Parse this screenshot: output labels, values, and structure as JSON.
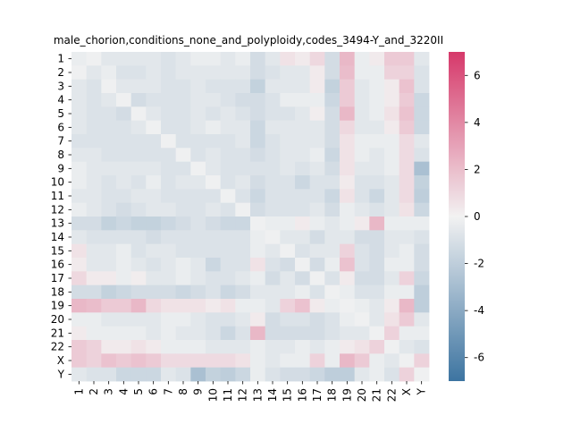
{
  "chart_data": {
    "type": "heatmap",
    "title": "male_chorion,conditions_none_and_polyploidy,codes_3494-Y_and_3220II",
    "xlabel": "",
    "ylabel": "",
    "row_labels": [
      "1",
      "2",
      "3",
      "4",
      "5",
      "6",
      "7",
      "8",
      "9",
      "10",
      "11",
      "12",
      "13",
      "14",
      "15",
      "16",
      "17",
      "18",
      "19",
      "20",
      "21",
      "22",
      "X",
      "Y"
    ],
    "col_labels": [
      "1",
      "2",
      "3",
      "4",
      "5",
      "6",
      "7",
      "8",
      "9",
      "10",
      "11",
      "12",
      "13",
      "14",
      "15",
      "16",
      "17",
      "18",
      "19",
      "20",
      "21",
      "22",
      "X",
      "Y"
    ],
    "colorbar": {
      "vmin": -7,
      "vmax": 7,
      "ticks": [
        "-6",
        "-4",
        "-2",
        "0",
        "2",
        "4",
        "6"
      ]
    },
    "colors": {
      "low": "#3d74a1",
      "mid": "#f2f2f2",
      "high": "#d6396a"
    },
    "values": [
      [
        -0.3,
        -0.1,
        -0.6,
        -0.6,
        -0.6,
        -0.6,
        -0.9,
        -0.6,
        -0.3,
        -0.3,
        -0.6,
        -0.3,
        -1.2,
        -0.6,
        0.6,
        0.3,
        1.0,
        -1.2,
        2.2,
        -0.3,
        0.3,
        1.5,
        1.5,
        -0.6
      ],
      [
        -0.1,
        -0.6,
        -0.3,
        -0.9,
        -0.9,
        -0.6,
        -0.9,
        -0.6,
        -0.6,
        -0.6,
        -0.6,
        -0.6,
        -1.2,
        -0.9,
        -0.6,
        -0.6,
        0.3,
        -1.2,
        2.0,
        -0.3,
        -0.3,
        1.2,
        1.2,
        -0.9
      ],
      [
        -0.6,
        -0.9,
        -0.1,
        -0.6,
        -0.6,
        -0.6,
        -0.9,
        -0.9,
        -0.6,
        -0.9,
        -0.9,
        -0.9,
        -1.8,
        -0.6,
        -0.6,
        -0.6,
        0.3,
        -1.8,
        1.5,
        -0.6,
        -0.3,
        0.3,
        1.8,
        -0.9
      ],
      [
        -0.6,
        -0.9,
        -0.6,
        -0.1,
        -1.2,
        -0.9,
        -0.9,
        -0.9,
        -0.6,
        -0.6,
        -0.9,
        -1.2,
        -1.2,
        -0.9,
        -0.3,
        -0.3,
        -0.3,
        -1.5,
        1.5,
        -0.6,
        -0.3,
        0.3,
        1.5,
        -1.5
      ],
      [
        -0.6,
        -0.9,
        -0.9,
        -1.2,
        -0.1,
        -0.6,
        -0.9,
        -0.9,
        -0.6,
        -0.9,
        -0.6,
        -0.9,
        -1.2,
        -0.9,
        -0.9,
        -0.6,
        0.2,
        -1.2,
        2.2,
        -0.6,
        -0.3,
        0.6,
        1.8,
        -1.5
      ],
      [
        -0.6,
        -0.9,
        -0.9,
        -0.9,
        -0.6,
        -0.1,
        -0.9,
        -0.9,
        -0.6,
        -0.3,
        -0.6,
        -0.6,
        -1.5,
        -0.6,
        -0.6,
        -0.6,
        -0.6,
        -1.2,
        1.0,
        -0.6,
        -0.6,
        0.3,
        1.5,
        -1.5
      ],
      [
        -0.9,
        -0.9,
        -0.9,
        -0.9,
        -0.9,
        -0.9,
        -0.1,
        -0.9,
        -0.9,
        -0.9,
        -0.9,
        -0.6,
        -1.5,
        -0.9,
        -0.6,
        -0.6,
        -0.6,
        -1.2,
        0.6,
        -0.3,
        -0.3,
        -0.3,
        0.9,
        -0.6
      ],
      [
        -0.6,
        -0.6,
        -0.9,
        -0.9,
        -0.9,
        -0.9,
        -0.9,
        -0.1,
        -0.9,
        -0.6,
        -0.9,
        -0.9,
        -1.2,
        -0.9,
        -0.6,
        -0.6,
        -0.3,
        -1.5,
        0.6,
        -0.3,
        -0.6,
        -0.3,
        0.9,
        -0.9
      ],
      [
        -0.3,
        -0.6,
        -0.6,
        -0.6,
        -0.6,
        -0.6,
        -0.9,
        -0.9,
        -0.1,
        -0.6,
        -0.9,
        -0.9,
        -0.9,
        -0.9,
        -0.6,
        -0.9,
        -0.6,
        -1.2,
        0.6,
        -0.6,
        -0.6,
        -0.3,
        0.9,
        -2.8
      ],
      [
        -0.3,
        -0.6,
        -0.9,
        -0.6,
        -0.9,
        -0.3,
        -0.9,
        -0.6,
        -0.6,
        -0.1,
        -0.9,
        -0.6,
        -1.2,
        -0.9,
        -0.9,
        -1.5,
        -0.9,
        -0.9,
        0.3,
        -0.9,
        -0.9,
        -0.6,
        0.9,
        -1.8
      ],
      [
        -0.6,
        -0.6,
        -0.9,
        -0.9,
        -0.6,
        -0.6,
        -0.9,
        -0.9,
        -0.9,
        -0.9,
        -0.1,
        -0.9,
        -1.5,
        -0.9,
        -0.9,
        -0.9,
        -0.9,
        -1.5,
        0.6,
        -0.9,
        -1.5,
        -0.6,
        0.9,
        -2.0
      ],
      [
        -0.3,
        -0.6,
        -0.9,
        -1.2,
        -0.9,
        -0.6,
        -0.6,
        -0.9,
        -0.9,
        -0.6,
        -0.9,
        -0.1,
        -1.2,
        -0.9,
        -0.9,
        -0.9,
        -0.6,
        -1.2,
        -0.3,
        -0.6,
        -0.9,
        -0.6,
        0.6,
        -1.5
      ],
      [
        -1.2,
        -1.2,
        -1.8,
        -1.5,
        -1.8,
        -1.8,
        -1.5,
        -1.2,
        -0.9,
        -1.2,
        -1.5,
        -1.5,
        -0.1,
        -0.3,
        -0.3,
        0.3,
        -0.3,
        -0.6,
        -0.3,
        0.3,
        2.2,
        -0.3,
        -0.3,
        -0.3
      ],
      [
        -0.6,
        -0.9,
        -0.9,
        -0.9,
        -0.9,
        -1.2,
        -0.9,
        -0.9,
        -0.9,
        -0.9,
        -0.9,
        -0.9,
        -0.3,
        -0.1,
        -0.6,
        -0.6,
        -1.2,
        -0.6,
        -0.6,
        -1.2,
        -1.2,
        -0.6,
        -0.6,
        -0.9
      ],
      [
        0.6,
        -0.6,
        -0.6,
        -0.3,
        -0.9,
        -0.6,
        -0.6,
        -0.9,
        -0.9,
        -0.9,
        -0.9,
        -0.9,
        -0.3,
        -0.6,
        -0.1,
        -0.9,
        -0.6,
        -0.6,
        1.2,
        -0.9,
        -1.2,
        -0.6,
        -0.3,
        -1.2
      ],
      [
        0.3,
        -0.6,
        -0.6,
        -0.3,
        -0.6,
        -0.9,
        -0.6,
        -0.3,
        -0.6,
        -1.5,
        -0.9,
        -0.9,
        0.6,
        -0.9,
        -1.2,
        -0.1,
        -1.2,
        -0.3,
        1.8,
        -0.9,
        -1.2,
        -0.3,
        -0.3,
        -1.2
      ],
      [
        1.0,
        0.3,
        0.3,
        -0.3,
        0.2,
        -0.6,
        -0.6,
        -0.3,
        -0.6,
        -0.9,
        -0.9,
        -0.6,
        -0.3,
        -1.2,
        -0.6,
        -1.2,
        -0.1,
        -0.9,
        0.3,
        -1.2,
        -1.2,
        -0.6,
        1.2,
        -1.5
      ],
      [
        -1.2,
        -1.2,
        -1.8,
        -1.5,
        -1.2,
        -1.2,
        -1.2,
        -1.5,
        -1.2,
        -0.9,
        -1.5,
        -1.2,
        -0.6,
        -0.6,
        -0.6,
        -0.3,
        -0.9,
        -0.1,
        -0.3,
        -0.9,
        -0.9,
        -0.3,
        -0.3,
        -2.0
      ],
      [
        2.2,
        2.0,
        1.5,
        1.5,
        2.2,
        1.0,
        0.6,
        0.6,
        0.6,
        0.3,
        0.6,
        -0.3,
        -0.3,
        -0.6,
        1.2,
        1.8,
        0.3,
        -0.3,
        -0.1,
        -0.3,
        -0.6,
        0.3,
        2.2,
        -2.0
      ],
      [
        -0.3,
        -0.3,
        -0.6,
        -0.6,
        -0.6,
        -0.6,
        -0.3,
        -0.3,
        -0.6,
        -0.9,
        -0.9,
        -0.6,
        0.3,
        -1.2,
        -0.9,
        -0.9,
        -1.2,
        -0.9,
        -0.3,
        -0.1,
        -0.6,
        0.6,
        1.5,
        -0.6
      ],
      [
        0.3,
        -0.3,
        -0.3,
        -0.3,
        -0.3,
        -0.6,
        -0.3,
        -0.6,
        -0.6,
        -0.9,
        -1.5,
        -0.9,
        2.2,
        -1.2,
        -1.2,
        -1.2,
        -1.2,
        -0.9,
        -0.6,
        -0.6,
        -0.1,
        1.2,
        -0.3,
        -0.3
      ],
      [
        1.5,
        1.2,
        0.3,
        0.3,
        0.6,
        0.3,
        -0.3,
        -0.3,
        -0.3,
        -0.6,
        -0.6,
        -0.6,
        -0.3,
        -0.6,
        -0.6,
        -0.3,
        -0.6,
        -0.3,
        0.3,
        0.6,
        1.2,
        -0.1,
        -0.6,
        -0.9
      ],
      [
        1.5,
        1.2,
        1.8,
        1.5,
        1.8,
        1.5,
        0.9,
        0.9,
        0.9,
        0.9,
        0.9,
        0.6,
        -0.3,
        -0.6,
        -0.3,
        -0.3,
        1.2,
        -0.3,
        2.2,
        1.5,
        -0.3,
        -0.6,
        -0.1,
        1.2
      ],
      [
        -0.6,
        -0.9,
        -0.9,
        -1.5,
        -1.5,
        -1.5,
        -0.6,
        -0.9,
        -2.8,
        -1.8,
        -2.0,
        -1.5,
        -0.3,
        -0.9,
        -1.2,
        -1.2,
        -1.5,
        -2.0,
        -2.0,
        -0.6,
        -0.3,
        -0.9,
        1.2,
        -0.1
      ]
    ]
  }
}
